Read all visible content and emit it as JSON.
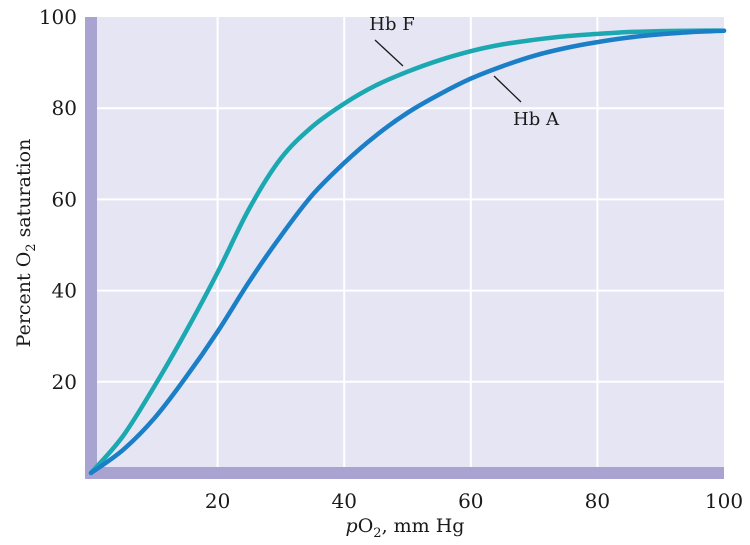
{
  "chart_data": {
    "type": "line",
    "title": "",
    "xlabel": {
      "prefix": "p",
      "main": "O",
      "sub": "2",
      "suffix": ", mm Hg"
    },
    "ylabel": {
      "prefix": "Percent O",
      "sub": "2",
      "suffix": " saturation"
    },
    "xlim": [
      0,
      100
    ],
    "ylim": [
      0,
      100
    ],
    "x_ticks": [
      20,
      40,
      60,
      80,
      100
    ],
    "y_ticks": [
      20,
      40,
      60,
      80,
      100
    ],
    "grid": true,
    "colors": {
      "background": "#e6e5f4",
      "axis_band": "#a9a3d2",
      "grid": "#ffffff",
      "hb_f": "#1ba8b0",
      "hb_a": "#1a7fc6"
    },
    "series": [
      {
        "name": "Hb F",
        "x": [
          0,
          5,
          10,
          15,
          20,
          25,
          30,
          35,
          40,
          45,
          50,
          55,
          60,
          65,
          70,
          75,
          80,
          85,
          90,
          95,
          100
        ],
        "y": [
          0,
          8,
          19,
          31,
          44,
          58,
          69,
          76,
          81,
          85,
          88,
          90.5,
          92.5,
          94,
          95,
          95.8,
          96.3,
          96.7,
          96.9,
          97,
          97
        ]
      },
      {
        "name": "Hb A",
        "x": [
          0,
          5,
          10,
          15,
          20,
          25,
          30,
          35,
          40,
          45,
          50,
          55,
          60,
          65,
          70,
          75,
          80,
          85,
          90,
          95,
          100
        ],
        "y": [
          0,
          5,
          12,
          21,
          31,
          42,
          52,
          61,
          68,
          74,
          79,
          83,
          86.5,
          89.2,
          91.5,
          93.2,
          94.5,
          95.5,
          96.2,
          96.7,
          97
        ]
      }
    ]
  }
}
